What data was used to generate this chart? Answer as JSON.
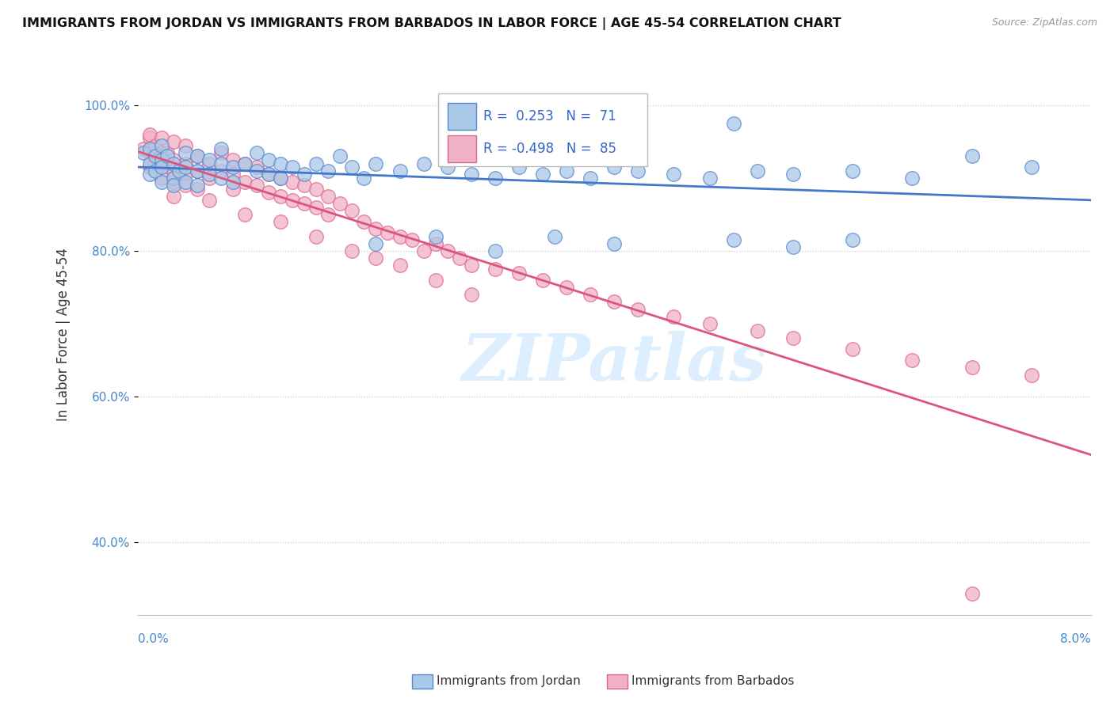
{
  "title": "IMMIGRANTS FROM JORDAN VS IMMIGRANTS FROM BARBADOS IN LABOR FORCE | AGE 45-54 CORRELATION CHART",
  "source": "Source: ZipAtlas.com",
  "ylabel": "In Labor Force | Age 45-54",
  "ytick_labels": [
    "40.0%",
    "60.0%",
    "80.0%",
    "100.0%"
  ],
  "ytick_values": [
    0.4,
    0.6,
    0.8,
    1.0
  ],
  "xlim": [
    0.0,
    0.08
  ],
  "ylim": [
    0.3,
    1.07
  ],
  "jordan_color": "#aac8e8",
  "jordan_edge": "#5588cc",
  "barbados_color": "#f0b0c8",
  "barbados_edge": "#dd6688",
  "jordan_R": 0.253,
  "jordan_N": 71,
  "barbados_R": -0.498,
  "barbados_N": 85,
  "legend_color": "#3366cc",
  "watermark_text": "ZIPatlas",
  "jordan_line_color": "#4477cc",
  "barbados_line_color": "#dd5577",
  "jordan_scatter_x": [
    0.0005,
    0.001,
    0.001,
    0.001,
    0.0015,
    0.0015,
    0.002,
    0.002,
    0.002,
    0.002,
    0.0025,
    0.003,
    0.003,
    0.003,
    0.0035,
    0.004,
    0.004,
    0.004,
    0.005,
    0.005,
    0.005,
    0.006,
    0.006,
    0.007,
    0.007,
    0.007,
    0.008,
    0.008,
    0.009,
    0.01,
    0.01,
    0.011,
    0.011,
    0.012,
    0.012,
    0.013,
    0.014,
    0.015,
    0.016,
    0.017,
    0.018,
    0.019,
    0.02,
    0.022,
    0.024,
    0.026,
    0.028,
    0.03,
    0.032,
    0.034,
    0.036,
    0.038,
    0.04,
    0.042,
    0.045,
    0.048,
    0.052,
    0.055,
    0.06,
    0.065,
    0.07,
    0.075,
    0.02,
    0.025,
    0.03,
    0.035,
    0.04,
    0.05,
    0.055,
    0.06,
    0.05
  ],
  "jordan_scatter_y": [
    0.935,
    0.94,
    0.92,
    0.905,
    0.93,
    0.91,
    0.945,
    0.925,
    0.915,
    0.895,
    0.93,
    0.92,
    0.9,
    0.89,
    0.91,
    0.935,
    0.915,
    0.895,
    0.93,
    0.91,
    0.89,
    0.925,
    0.905,
    0.94,
    0.92,
    0.9,
    0.915,
    0.895,
    0.92,
    0.935,
    0.91,
    0.925,
    0.905,
    0.92,
    0.9,
    0.915,
    0.905,
    0.92,
    0.91,
    0.93,
    0.915,
    0.9,
    0.92,
    0.91,
    0.92,
    0.915,
    0.905,
    0.9,
    0.915,
    0.905,
    0.91,
    0.9,
    0.915,
    0.91,
    0.905,
    0.9,
    0.91,
    0.905,
    0.91,
    0.9,
    0.93,
    0.915,
    0.81,
    0.82,
    0.8,
    0.82,
    0.81,
    0.815,
    0.805,
    0.815,
    0.975
  ],
  "barbados_scatter_x": [
    0.0005,
    0.001,
    0.001,
    0.001,
    0.001,
    0.0015,
    0.0015,
    0.002,
    0.002,
    0.002,
    0.002,
    0.0025,
    0.003,
    0.003,
    0.003,
    0.003,
    0.003,
    0.004,
    0.004,
    0.004,
    0.004,
    0.005,
    0.005,
    0.005,
    0.006,
    0.006,
    0.007,
    0.007,
    0.008,
    0.008,
    0.008,
    0.009,
    0.009,
    0.01,
    0.01,
    0.011,
    0.011,
    0.012,
    0.012,
    0.013,
    0.013,
    0.014,
    0.014,
    0.015,
    0.015,
    0.016,
    0.016,
    0.017,
    0.018,
    0.019,
    0.02,
    0.021,
    0.022,
    0.023,
    0.024,
    0.025,
    0.026,
    0.027,
    0.028,
    0.03,
    0.032,
    0.034,
    0.036,
    0.038,
    0.04,
    0.042,
    0.045,
    0.048,
    0.052,
    0.055,
    0.06,
    0.065,
    0.07,
    0.075,
    0.003,
    0.006,
    0.009,
    0.012,
    0.015,
    0.018,
    0.02,
    0.022,
    0.025,
    0.028,
    0.07
  ],
  "barbados_scatter_y": [
    0.94,
    0.955,
    0.935,
    0.96,
    0.915,
    0.945,
    0.92,
    0.955,
    0.935,
    0.92,
    0.9,
    0.935,
    0.95,
    0.925,
    0.91,
    0.895,
    0.875,
    0.945,
    0.92,
    0.905,
    0.89,
    0.93,
    0.91,
    0.885,
    0.92,
    0.9,
    0.935,
    0.91,
    0.925,
    0.905,
    0.885,
    0.92,
    0.895,
    0.915,
    0.89,
    0.905,
    0.88,
    0.9,
    0.875,
    0.895,
    0.87,
    0.89,
    0.865,
    0.885,
    0.86,
    0.875,
    0.85,
    0.865,
    0.855,
    0.84,
    0.83,
    0.825,
    0.82,
    0.815,
    0.8,
    0.81,
    0.8,
    0.79,
    0.78,
    0.775,
    0.77,
    0.76,
    0.75,
    0.74,
    0.73,
    0.72,
    0.71,
    0.7,
    0.69,
    0.68,
    0.665,
    0.65,
    0.64,
    0.63,
    0.9,
    0.87,
    0.85,
    0.84,
    0.82,
    0.8,
    0.79,
    0.78,
    0.76,
    0.74,
    0.33
  ]
}
